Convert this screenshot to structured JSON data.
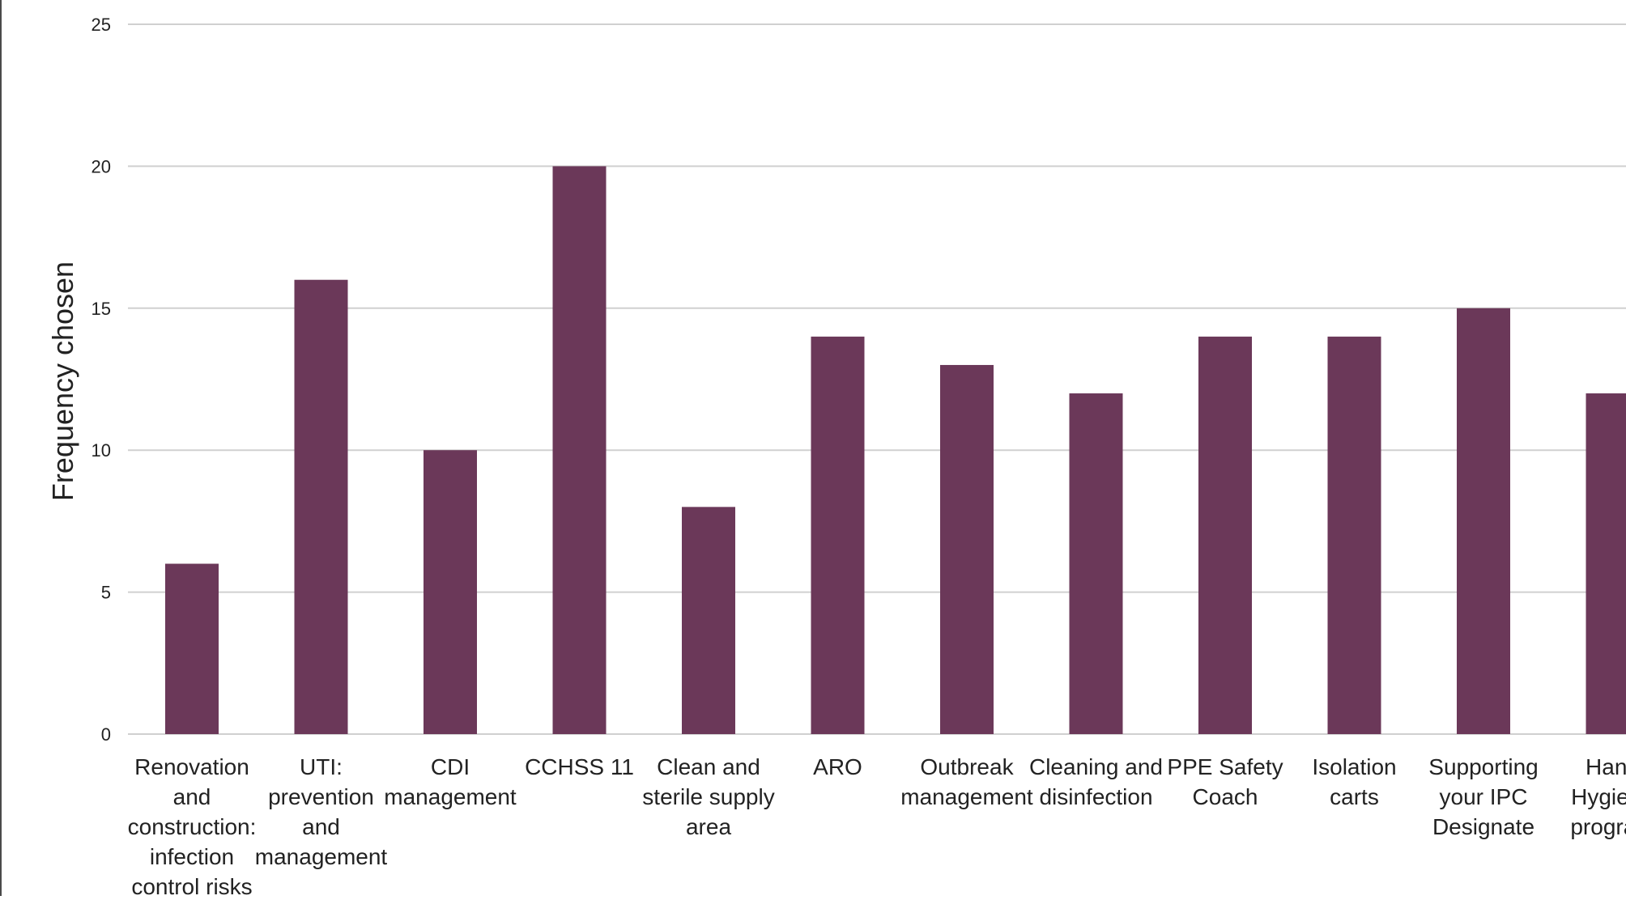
{
  "chart_data": {
    "type": "bar",
    "title": "",
    "xlabel": "",
    "ylabel": "Frequency chosen",
    "ylim": [
      0,
      25
    ],
    "yticks": [
      0,
      5,
      10,
      15,
      20,
      25
    ],
    "grid": true,
    "categories": [
      [
        "Renovation",
        "and",
        "construction:",
        "infection",
        "control risks"
      ],
      [
        "UTI:",
        "prevention",
        "and",
        "management"
      ],
      [
        "CDI",
        "management"
      ],
      [
        "CCHSS 11"
      ],
      [
        "Clean and",
        "sterile supply",
        "area"
      ],
      [
        "ARO"
      ],
      [
        "Outbreak",
        "management"
      ],
      [
        "Cleaning and",
        "disinfection"
      ],
      [
        "PPE Safety",
        "Coach"
      ],
      [
        "Isolation",
        "carts"
      ],
      [
        "Supporting",
        "your IPC",
        "Designate"
      ],
      [
        "Hand",
        "Hygiene",
        "program"
      ]
    ],
    "values": [
      6,
      16,
      10,
      20,
      8,
      14,
      13,
      12,
      14,
      14,
      15,
      12
    ],
    "colors": {
      "bar": "#6b3859",
      "grid": "#d0d0d0",
      "axis_text": "#222222"
    }
  }
}
